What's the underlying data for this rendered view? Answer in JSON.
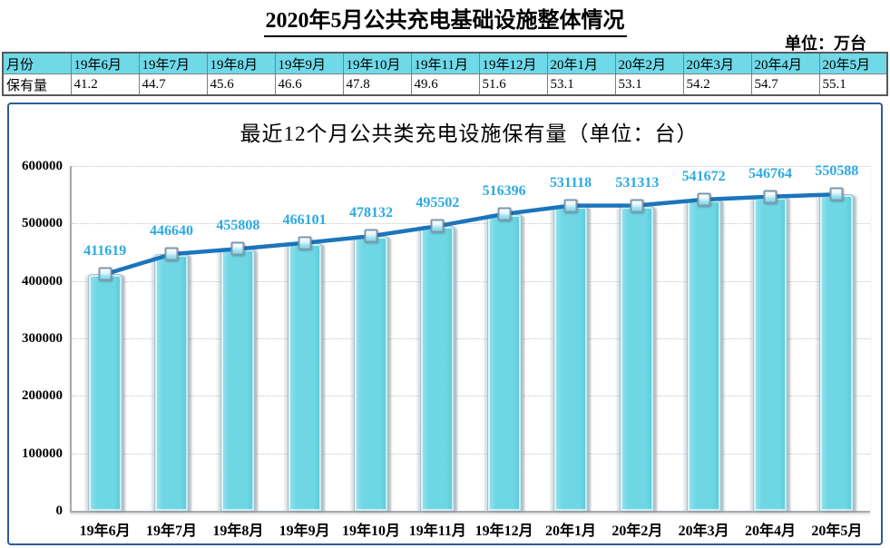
{
  "page": {
    "title": "2020年5月公共充电基础设施整体情况",
    "unit_label": "单位：万台"
  },
  "table": {
    "header": [
      "月份",
      "19年6月",
      "19年7月",
      "19年8月",
      "19年9月",
      "19年10月",
      "19年11月",
      "19年12月",
      "20年1月",
      "20年2月",
      "20年3月",
      "20年4月",
      "20年5月"
    ],
    "row_label": "保有量",
    "values": [
      "41.2",
      "44.7",
      "45.6",
      "46.6",
      "47.8",
      "49.6",
      "51.6",
      "53.1",
      "53.1",
      "54.2",
      "54.7",
      "55.1"
    ]
  },
  "chart_data": {
    "type": "bar",
    "subtype": "column-with-line-overlay",
    "title": "最近12个月公共类充电设施保有量（单位：台）",
    "categories": [
      "19年6月",
      "19年7月",
      "19年8月",
      "19年9月",
      "19年10月",
      "19年11月",
      "19年12月",
      "20年1月",
      "20年2月",
      "20年3月",
      "20年4月",
      "20年5月"
    ],
    "values": [
      411619,
      446640,
      455808,
      466101,
      478132,
      495502,
      516396,
      531118,
      531313,
      541672,
      546764,
      550588
    ],
    "xlabel": "",
    "ylabel": "",
    "ylim": [
      0,
      600000
    ],
    "ytick_step": 100000,
    "grid": "horizontal-dotted",
    "legend": "none",
    "data_labels": "above-points"
  },
  "colors": {
    "table_header_bg": "#6FD9E8",
    "bar_fill": "#6FD6E4",
    "line": "#1B75BC",
    "marker_border": "#7E98AC",
    "data_label": "#2BAAE2",
    "chart_border": "#2E5B97",
    "gridline": "#C6C6C6",
    "axis": "#A6ABB0"
  }
}
